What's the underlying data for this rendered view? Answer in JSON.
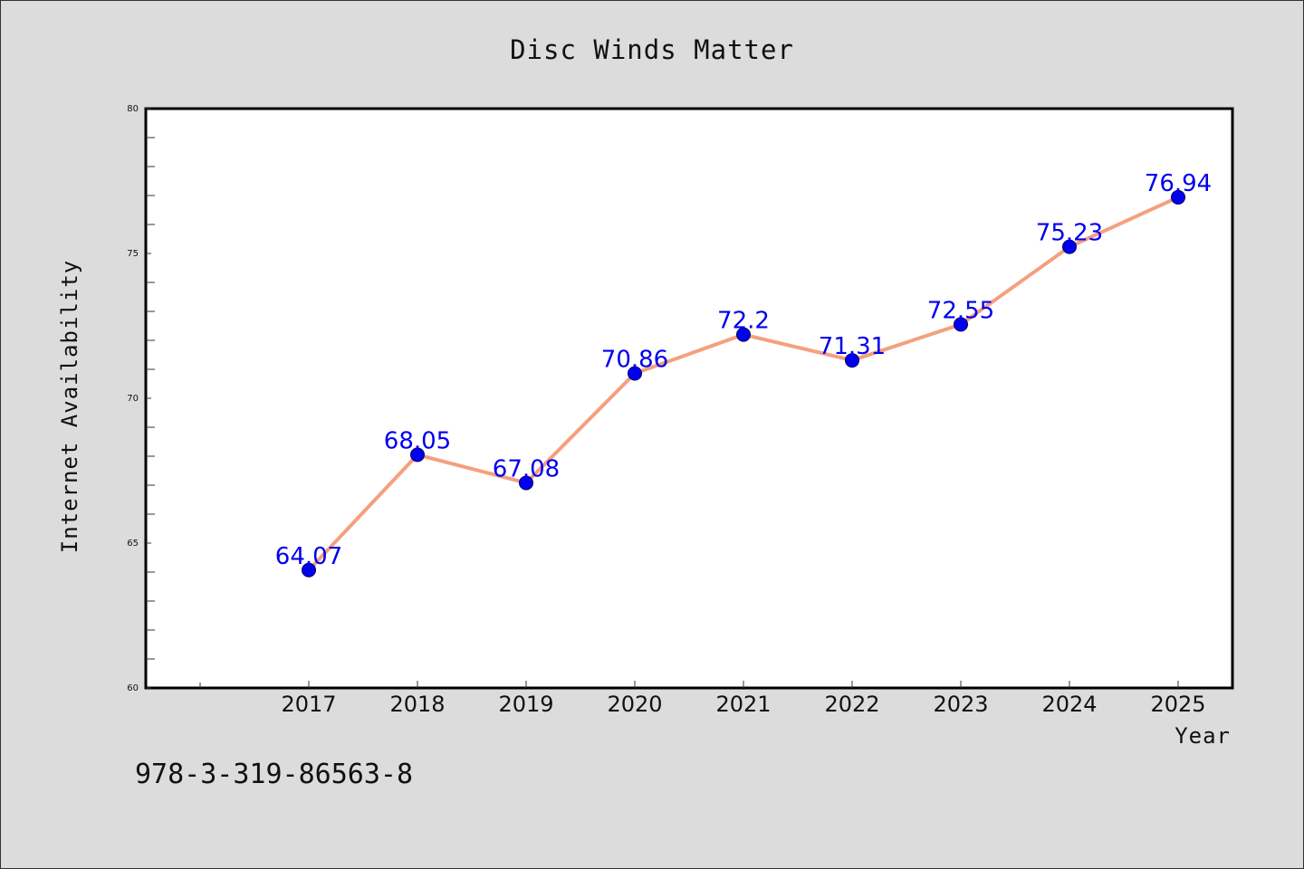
{
  "chart_data": {
    "type": "line",
    "title": "Disc Winds Matter",
    "xlabel": "Year",
    "ylabel": "Internet Availability",
    "categories": [
      "2017",
      "2018",
      "2019",
      "2020",
      "2021",
      "2022",
      "2023",
      "2024",
      "2025"
    ],
    "series": [
      {
        "values": [
          64.07,
          68.05,
          67.08,
          70.86,
          72.2,
          71.31,
          72.55,
          75.23,
          76.94
        ],
        "labels": [
          "64.07",
          "68.05",
          "67.08",
          "70.86",
          "72.2",
          "71.31",
          "72.55",
          "75.23",
          "76.94"
        ],
        "line_color": "#f4a07e",
        "marker_color": "#0000ee",
        "label_color": "#0000ee"
      }
    ],
    "ylim": [
      60,
      80
    ],
    "yticks": [
      "60",
      "65",
      "70",
      "75",
      "80"
    ],
    "grid": false,
    "legend": "none",
    "background_color": "#dcdcdc",
    "plot_background_color": "#ffffff"
  },
  "footer": {
    "text": "978-3-319-86563-8"
  }
}
